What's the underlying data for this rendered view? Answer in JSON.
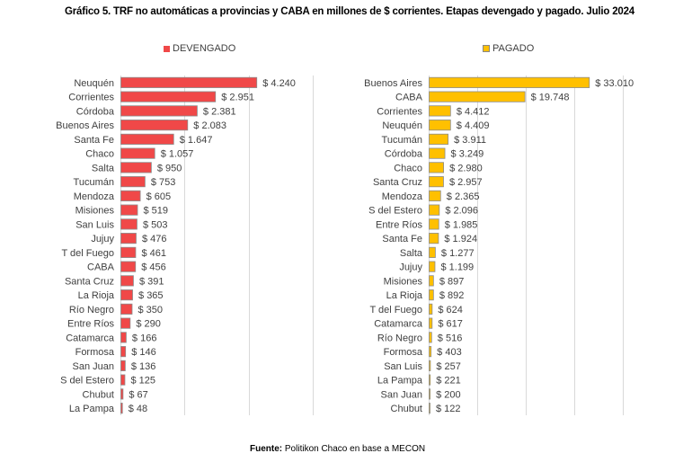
{
  "title": "Gráfico 5. TRF no automáticas a provincias y CABA en millones de $ corrientes. Etapas devengado y pagado. Julio 2024",
  "source": {
    "label": "Fuente:",
    "text": " Politikon Chaco en base a MECON"
  },
  "chart_data": [
    {
      "type": "bar",
      "orientation": "horizontal",
      "legend": "DEVENGADO",
      "legend_position": "top",
      "color": "#F04848",
      "grid": true,
      "xlim": [
        0,
        6000
      ],
      "x_grid_step": 2000,
      "categories": [
        "Neuquén",
        "Corrientes",
        "Córdoba",
        "Buenos Aires",
        "Santa Fe",
        "Chaco",
        "Salta",
        "Tucumán",
        "Mendoza",
        "Misiones",
        "San Luis",
        "Jujuy",
        "T del Fuego",
        "CABA",
        "Santa Cruz",
        "La Rioja",
        "Río Negro",
        "Entre Ríos",
        "Catamarca",
        "Formosa",
        "San Juan",
        "S del Estero",
        "Chubut",
        "La Pampa"
      ],
      "values": [
        4240,
        2951,
        2381,
        2083,
        1647,
        1057,
        950,
        753,
        605,
        519,
        503,
        476,
        461,
        456,
        391,
        365,
        350,
        290,
        166,
        146,
        136,
        125,
        67,
        48
      ],
      "labels": [
        "$ 4.240",
        "$ 2.951",
        "$ 2.381",
        "$ 2.083",
        "$ 1.647",
        "$ 1.057",
        "$ 950",
        "$ 753",
        "$ 605",
        "$ 519",
        "$ 503",
        "$ 476",
        "$ 461",
        "$ 456",
        "$ 391",
        "$ 365",
        "$ 350",
        "$ 290",
        "$ 166",
        "$ 146",
        "$ 136",
        "$ 125",
        "$ 67",
        "$ 48"
      ]
    },
    {
      "type": "bar",
      "orientation": "horizontal",
      "legend": "PAGADO",
      "legend_position": "top",
      "color": "#FFC000",
      "grid": true,
      "xlim": [
        0,
        40000
      ],
      "x_grid_step": 10000,
      "categories": [
        "Buenos Aires",
        "CABA",
        "Corrientes",
        "Neuquén",
        "Tucumán",
        "Córdoba",
        "Chaco",
        "Santa Cruz",
        "Mendoza",
        "S del Estero",
        "Entre Ríos",
        "Santa Fe",
        "Salta",
        "Jujuy",
        "Misiones",
        "La Rioja",
        "T del Fuego",
        "Catamarca",
        "Río Negro",
        "Formosa",
        "San Luis",
        "La Pampa",
        "San Juan",
        "Chubut"
      ],
      "values": [
        33010,
        19748,
        4412,
        4409,
        3911,
        3249,
        2980,
        2957,
        2365,
        2096,
        1985,
        1924,
        1277,
        1199,
        897,
        892,
        624,
        617,
        516,
        403,
        257,
        221,
        200,
        122
      ],
      "labels": [
        "$ 33.010",
        "$ 19.748",
        "$ 4.412",
        "$ 4.409",
        "$ 3.911",
        "$ 3.249",
        "$ 2.980",
        "$ 2.957",
        "$ 2.365",
        "$ 2.096",
        "$ 1.985",
        "$ 1.924",
        "$ 1.277",
        "$ 1.199",
        "$ 897",
        "$ 892",
        "$ 624",
        "$ 617",
        "$ 516",
        "$ 403",
        "$ 257",
        "$ 221",
        "$ 200",
        "$ 122"
      ]
    }
  ]
}
